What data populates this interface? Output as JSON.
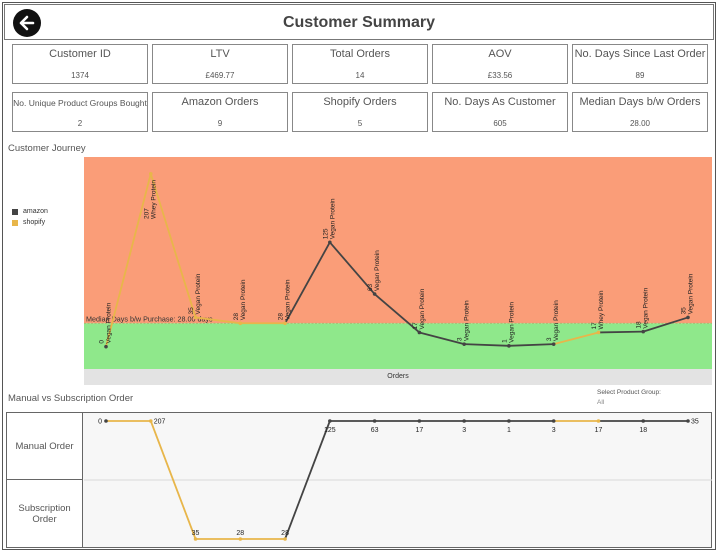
{
  "header": {
    "title": "Customer Summary",
    "back_icon": "back-arrow-icon"
  },
  "kpis_row1": [
    {
      "label": "Customer ID",
      "value": "1374"
    },
    {
      "label": "LTV",
      "value": "£469.77"
    },
    {
      "label": "Total Orders",
      "value": "14"
    },
    {
      "label": "AOV",
      "value": "£33.56"
    },
    {
      "label": "No. Days Since Last Order",
      "value": "89"
    }
  ],
  "kpis_row2": [
    {
      "label": "No. Unique Product Groups Bought",
      "value": "2"
    },
    {
      "label": "Amazon Orders",
      "value": "9"
    },
    {
      "label": "Shopify Orders",
      "value": "5"
    },
    {
      "label": "No. Days As Customer",
      "value": "605"
    },
    {
      "label": "Median Days b/w Orders",
      "value": "28.00"
    }
  ],
  "journey": {
    "section_title": "Customer Journey",
    "legend": [
      {
        "name": "amazon",
        "color": "#444444"
      },
      {
        "name": "shopify",
        "color": "#e8b64a"
      }
    ],
    "median_label": "Median Days b/w Purchase: 28.00 days",
    "x_axis_label": "Orders"
  },
  "manual_sub": {
    "section_title": "Manual vs Subscription Order",
    "row_labels": [
      "Manual Order",
      "Subscription Order"
    ],
    "selector_title": "Select Product Group:",
    "selector_value": "All"
  },
  "chart_data": [
    {
      "type": "line",
      "title": "Customer Journey",
      "xlabel": "Orders",
      "x": [
        1,
        2,
        3,
        4,
        5,
        6,
        7,
        8,
        9,
        10,
        11,
        12,
        13,
        14
      ],
      "values": [
        0,
        207,
        35,
        28,
        28,
        125,
        63,
        17,
        3,
        1,
        3,
        17,
        18,
        35
      ],
      "labels": [
        "Vegan Protein",
        "Whey Protein",
        "Vegan Protein",
        "Vegan Protein",
        "Vegan Protein",
        "Vegan Protein",
        "Vegan Protein",
        "Vegan Protein",
        "Vegan Protein",
        "Vegan Protein",
        "Vegan Protein",
        "Whey Protein",
        "Vegan Protein",
        "Vegan Protein"
      ],
      "channel": [
        "amazon",
        "shopify",
        "shopify",
        "shopify",
        "shopify",
        "amazon",
        "amazon",
        "amazon",
        "amazon",
        "amazon",
        "amazon",
        "shopify",
        "amazon",
        "amazon"
      ],
      "series": [
        {
          "name": "amazon"
        },
        {
          "name": "shopify"
        }
      ],
      "median": 28,
      "ylim": [
        -10,
        220
      ],
      "above_median_color": "#fa9d78",
      "below_median_color": "#8fe88b",
      "legend": "left"
    },
    {
      "type": "line",
      "title": "Manual vs Subscription Order",
      "x": [
        1,
        2,
        3,
        4,
        5,
        6,
        7,
        8,
        9,
        10,
        11,
        12,
        13,
        14
      ],
      "values": [
        0,
        207,
        35,
        28,
        28,
        125,
        63,
        17,
        3,
        1,
        3,
        17,
        18,
        35
      ],
      "order_type": [
        "Manual",
        "Manual",
        "Subscription",
        "Subscription",
        "Subscription",
        "Manual",
        "Manual",
        "Manual",
        "Manual",
        "Manual",
        "Manual",
        "Manual",
        "Manual",
        "Manual"
      ],
      "channel": [
        "amazon",
        "shopify",
        "shopify",
        "shopify",
        "shopify",
        "amazon",
        "amazon",
        "amazon",
        "amazon",
        "amazon",
        "amazon",
        "shopify",
        "amazon",
        "amazon"
      ],
      "categories": [
        "Manual Order",
        "Subscription Order"
      ]
    }
  ]
}
